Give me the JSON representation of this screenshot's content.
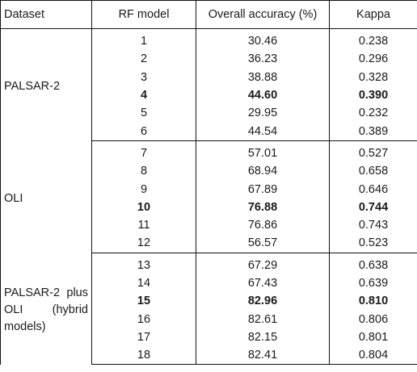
{
  "table": {
    "headers": [
      "Dataset",
      "RF model",
      "Overall accuracy (%)",
      "Kappa"
    ],
    "groups": [
      {
        "dataset": "PALSAR-2",
        "rows": [
          {
            "model": "1",
            "accuracy": "30.46",
            "kappa": "0.238",
            "bold": false
          },
          {
            "model": "2",
            "accuracy": "36.23",
            "kappa": "0.296",
            "bold": false
          },
          {
            "model": "3",
            "accuracy": "38.88",
            "kappa": "0.328",
            "bold": false
          },
          {
            "model": "4",
            "accuracy": "44.60",
            "kappa": "0.390",
            "bold": true
          },
          {
            "model": "5",
            "accuracy": "29.95",
            "kappa": "0.232",
            "bold": false
          },
          {
            "model": "6",
            "accuracy": "44.54",
            "kappa": "0.389",
            "bold": false
          }
        ]
      },
      {
        "dataset": "OLI",
        "rows": [
          {
            "model": "7",
            "accuracy": "57.01",
            "kappa": "0.527",
            "bold": false
          },
          {
            "model": "8",
            "accuracy": "68.94",
            "kappa": "0.658",
            "bold": false
          },
          {
            "model": "9",
            "accuracy": "67.89",
            "kappa": "0.646",
            "bold": false
          },
          {
            "model": "10",
            "accuracy": "76.88",
            "kappa": "0.744",
            "bold": true
          },
          {
            "model": "11",
            "accuracy": "76.86",
            "kappa": "0.743",
            "bold": false
          },
          {
            "model": "12",
            "accuracy": "56.57",
            "kappa": "0.523",
            "bold": false
          }
        ]
      },
      {
        "dataset": "PALSAR-2 plus OLI (hybrid models)",
        "rows": [
          {
            "model": "13",
            "accuracy": "67.29",
            "kappa": "0.638",
            "bold": false
          },
          {
            "model": "14",
            "accuracy": "67.43",
            "kappa": "0.639",
            "bold": false
          },
          {
            "model": "15",
            "accuracy": "82.96",
            "kappa": "0.810",
            "bold": true
          },
          {
            "model": "16",
            "accuracy": "82.61",
            "kappa": "0.806",
            "bold": false
          },
          {
            "model": "17",
            "accuracy": "82.15",
            "kappa": "0.801",
            "bold": false
          },
          {
            "model": "18",
            "accuracy": "82.41",
            "kappa": "0.804",
            "bold": false
          }
        ]
      }
    ]
  }
}
